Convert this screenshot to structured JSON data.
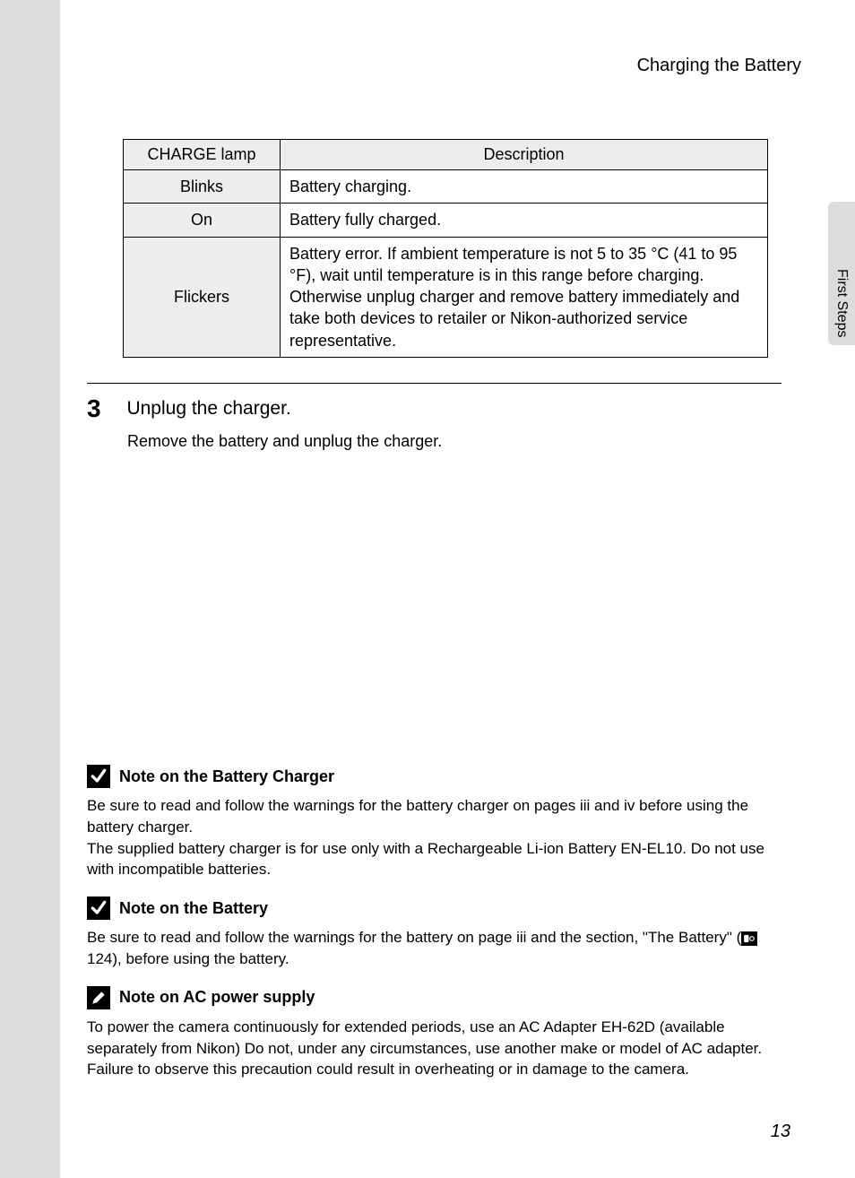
{
  "header": {
    "title": "Charging the Battery"
  },
  "side": {
    "label": "First Steps"
  },
  "table": {
    "columns": [
      "CHARGE lamp",
      "Description"
    ],
    "rows": [
      {
        "lamp": "Blinks",
        "desc": "Battery charging."
      },
      {
        "lamp": "On",
        "desc": "Battery fully charged."
      },
      {
        "lamp": "Flickers",
        "desc": "Battery error. If ambient temperature is not 5 to 35 °C (41 to 95 °F), wait until temperature is in this range before charging. Otherwise unplug charger and remove battery immediately and take both devices to retailer or Nikon-authorized service representative."
      }
    ],
    "header_bg": "#ededed",
    "border_color": "#000000",
    "fontsize": 18
  },
  "step": {
    "number": "3",
    "title": "Unplug the charger.",
    "body": "Remove the battery and unplug the charger."
  },
  "notes": [
    {
      "icon": "checkmark",
      "title": "Note on the Battery Charger",
      "body": "Be sure to read and follow the warnings for the battery charger on pages iii and iv before using the battery charger.\nThe supplied battery charger is for use only with a Rechargeable Li-ion Battery EN-EL10. Do not use with incompatible batteries."
    },
    {
      "icon": "checkmark",
      "title": "Note on the Battery",
      "body_prefix": "Be sure to read and follow the warnings for the battery on page iii and the section, \"The Battery\" (",
      "ref_page": " 124",
      "body_suffix": "), before using the battery."
    },
    {
      "icon": "pencil",
      "title": "Note on AC power supply",
      "body": "To power the camera continuously for extended periods, use an AC Adapter EH-62D (available separately from Nikon) Do not, under any circumstances, use another make or model of AC adapter. Failure to observe this precaution could result in overheating or in damage to the camera."
    }
  ],
  "page_number": "13",
  "colors": {
    "page_bg": "#ffffff",
    "outer_bg": "#dcdcdc",
    "text": "#000000"
  }
}
